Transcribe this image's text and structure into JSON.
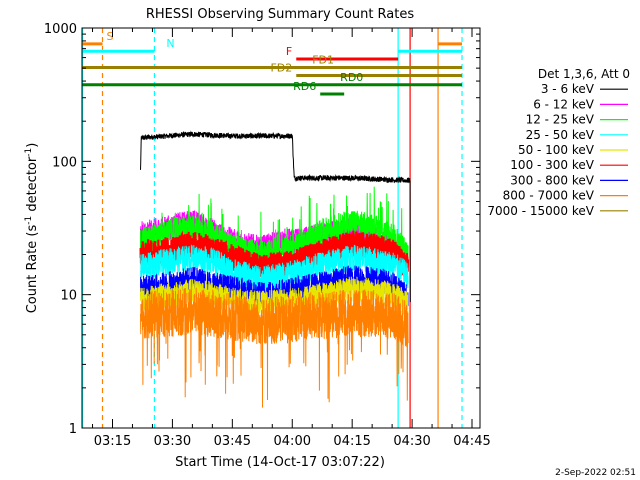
{
  "footer": {
    "date": "2-Sep-2022 02:51"
  },
  "chart_data": {
    "type": "line",
    "title": "RHESSI Observing Summary Count Rates",
    "xlabel": "Start Time (14-Oct-17 03:07:22)",
    "ylabel_main": "Count Rate (s",
    "ylabel_sup1": "-1",
    "ylabel_mid": " detector",
    "ylabel_sup2": "-1",
    "ylabel_end": ")",
    "x_range": [
      "03:07:22",
      "04:47:00"
    ],
    "y_range": [
      1,
      1000
    ],
    "y_scale": "log",
    "x_ticks": [
      "03:15",
      "03:30",
      "03:45",
      "04:00",
      "04:15",
      "04:30",
      "04:45"
    ],
    "x_tick_minutes": [
      195,
      210,
      225,
      240,
      255,
      270,
      285
    ],
    "y_ticks": [
      {
        "value": 1,
        "label": "1"
      },
      {
        "value": 10,
        "label": "10"
      },
      {
        "value": 100,
        "label": "100"
      },
      {
        "value": 1000,
        "label": "1000"
      }
    ],
    "legend": {
      "position": "right",
      "title": "Det 1,3,6, Att 0",
      "entries": [
        {
          "label": "3 - 6 keV",
          "color": "#000000"
        },
        {
          "label": "6 - 12 keV",
          "color": "#ff00ff"
        },
        {
          "label": "12 - 25 keV",
          "color": "#00ff00"
        },
        {
          "label": "25 - 50 keV",
          "color": "#00ffff"
        },
        {
          "label": "50 - 100 keV",
          "color": "#e6e600"
        },
        {
          "label": "100 - 300 keV",
          "color": "#ff0000"
        },
        {
          "label": "300 - 800 keV",
          "color": "#0000ff"
        },
        {
          "label": "800 - 7000 keV",
          "color": "#ff8000"
        },
        {
          "label": "7000 - 15000 keV",
          "color": "#998000"
        }
      ]
    },
    "series": [
      {
        "name": "3 - 6 keV",
        "color": "#000000",
        "points": [
          [
            202,
            85
          ],
          [
            202.2,
            150
          ],
          [
            215,
            160
          ],
          [
            225,
            155
          ],
          [
            240,
            155
          ],
          [
            240.5,
            75
          ],
          [
            255,
            75
          ],
          [
            268,
            72
          ],
          [
            269.5,
            72
          ],
          [
            269.6,
            1
          ]
        ]
      },
      {
        "name": "6 - 12 keV",
        "color": "#ff00ff",
        "points": [
          [
            202,
            28
          ],
          [
            210,
            32
          ],
          [
            215,
            35
          ],
          [
            220,
            30
          ],
          [
            225,
            25
          ],
          [
            232,
            22
          ],
          [
            238,
            25
          ],
          [
            242,
            25
          ],
          [
            248,
            28
          ],
          [
            255,
            30
          ],
          [
            260,
            26
          ],
          [
            265,
            24
          ],
          [
            269,
            18
          ]
        ]
      },
      {
        "name": "12 - 25 keV",
        "color": "#00ff00",
        "points": [
          [
            202,
            25
          ],
          [
            210,
            30
          ],
          [
            215,
            32
          ],
          [
            220,
            28
          ],
          [
            225,
            23
          ],
          [
            232,
            20
          ],
          [
            238,
            22
          ],
          [
            242,
            24
          ],
          [
            248,
            30
          ],
          [
            255,
            35
          ],
          [
            260,
            32
          ],
          [
            265,
            28
          ],
          [
            269,
            20
          ]
        ]
      },
      {
        "name": "100 - 300 keV",
        "color": "#ff0000",
        "points": [
          [
            202,
            20
          ],
          [
            210,
            22
          ],
          [
            215,
            24
          ],
          [
            220,
            22
          ],
          [
            225,
            19
          ],
          [
            232,
            16
          ],
          [
            238,
            17
          ],
          [
            242,
            18
          ],
          [
            248,
            21
          ],
          [
            255,
            24
          ],
          [
            260,
            23
          ],
          [
            265,
            21
          ],
          [
            269,
            16
          ]
        ]
      },
      {
        "name": "25 - 50 keV",
        "color": "#00ffff",
        "points": [
          [
            202,
            16
          ],
          [
            210,
            18
          ],
          [
            215,
            19
          ],
          [
            220,
            18
          ],
          [
            225,
            15
          ],
          [
            232,
            13
          ],
          [
            238,
            14
          ],
          [
            242,
            15
          ],
          [
            248,
            17
          ],
          [
            255,
            19
          ],
          [
            260,
            18
          ],
          [
            265,
            17
          ],
          [
            269,
            14
          ]
        ]
      },
      {
        "name": "300 - 800 keV",
        "color": "#0000ff",
        "points": [
          [
            202,
            11
          ],
          [
            210,
            12
          ],
          [
            215,
            13
          ],
          [
            220,
            12
          ],
          [
            225,
            11
          ],
          [
            232,
            10
          ],
          [
            238,
            10.5
          ],
          [
            242,
            11
          ],
          [
            248,
            12
          ],
          [
            255,
            13.5
          ],
          [
            260,
            13
          ],
          [
            265,
            12
          ],
          [
            269,
            10
          ]
        ]
      },
      {
        "name": "50 - 100 keV",
        "color": "#e6e600",
        "points": [
          [
            202,
            9
          ],
          [
            210,
            10
          ],
          [
            215,
            10.5
          ],
          [
            220,
            10
          ],
          [
            225,
            9
          ],
          [
            232,
            8.5
          ],
          [
            238,
            8.8
          ],
          [
            242,
            9
          ],
          [
            248,
            10
          ],
          [
            255,
            11
          ],
          [
            260,
            10.5
          ],
          [
            265,
            10
          ],
          [
            269,
            8.5
          ]
        ]
      },
      {
        "name": "800 - 7000 keV",
        "color": "#ff8000",
        "points": [
          [
            202,
            7
          ],
          [
            210,
            7.3
          ],
          [
            215,
            7.5
          ],
          [
            220,
            7.2
          ],
          [
            225,
            6.8
          ],
          [
            232,
            6.3
          ],
          [
            238,
            6.5
          ],
          [
            242,
            6.8
          ],
          [
            248,
            7
          ],
          [
            255,
            7.3
          ],
          [
            260,
            7.2
          ],
          [
            265,
            7
          ],
          [
            269,
            6
          ]
        ]
      }
    ],
    "vlines": [
      {
        "minute": 187.5,
        "color": "#00ffff",
        "style": "solid"
      },
      {
        "minute": 192.5,
        "color": "#ff8000",
        "style": "dashed"
      },
      {
        "minute": 205.5,
        "color": "#00ffff",
        "style": "dashed"
      },
      {
        "minute": 266.5,
        "color": "#00ffff",
        "style": "solid"
      },
      {
        "minute": 269.5,
        "color": "#ff0000",
        "style": "solid"
      },
      {
        "minute": 276.5,
        "color": "#ff8000",
        "style": "solid"
      },
      {
        "minute": 282.5,
        "color": "#00ffff",
        "style": "dashed"
      }
    ],
    "flags": [
      {
        "label": "S",
        "color": "#ff8000",
        "y": 760,
        "segments": [
          [
            187.5,
            192.5
          ],
          [
            276.5,
            282.5
          ]
        ],
        "label_minute": 193.5,
        "anchor": "start"
      },
      {
        "label": "N",
        "color": "#00ffff",
        "y": 670,
        "segments": [
          [
            187.5,
            205.5
          ],
          [
            266.5,
            282.5
          ]
        ],
        "label_minute": 208.5,
        "anchor": "start"
      },
      {
        "label": "F",
        "color": "#ff0000",
        "y": 585,
        "segments": [
          [
            241,
            266.5
          ]
        ],
        "label_minute": 240,
        "anchor": "end"
      },
      {
        "label": "FD1",
        "color": "#998000",
        "y": 505,
        "segments": [
          [
            187.5,
            282.5
          ]
        ],
        "label_minute": 245,
        "anchor": "start"
      },
      {
        "label": "FD2",
        "color": "#998000",
        "y": 440,
        "segments": [
          [
            241,
            282.5
          ]
        ],
        "label_minute": 240,
        "anchor": "end"
      },
      {
        "label": "RD0",
        "color": "#008000",
        "y": 375,
        "segments": [
          [
            187.5,
            282.5
          ]
        ],
        "label_minute": 252,
        "anchor": "start"
      },
      {
        "label": "RD6",
        "color": "#008000",
        "y": 320,
        "segments": [
          [
            247,
            253
          ]
        ],
        "label_minute": 246,
        "anchor": "end"
      }
    ]
  }
}
